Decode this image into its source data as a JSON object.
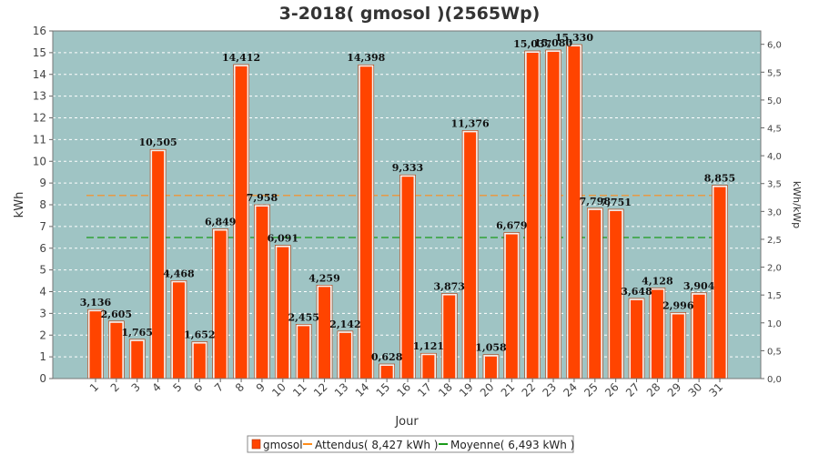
{
  "chart_data": {
    "type": "bar",
    "title": "3-2018( gmosol )(2565Wp)",
    "xlabel": "Jour",
    "ylabel": "kWh",
    "y2label": "kWh/kWp",
    "ylim": [
      0,
      16
    ],
    "y2lim": [
      0,
      6.24
    ],
    "yticks": [
      "0",
      "1",
      "2",
      "3",
      "4",
      "5",
      "6",
      "7",
      "8",
      "9",
      "10",
      "11",
      "12",
      "13",
      "14",
      "15",
      "16"
    ],
    "y2ticks": [
      "0,0",
      "0,5",
      "1,0",
      "1,5",
      "2,0",
      "2,5",
      "3,0",
      "3,5",
      "4,0",
      "4,5",
      "5,0",
      "5,5",
      "6,0"
    ],
    "categories": [
      "1",
      "2",
      "3",
      "4",
      "5",
      "6",
      "7",
      "8",
      "9",
      "10",
      "11",
      "12",
      "13",
      "14",
      "15",
      "16",
      "17",
      "18",
      "19",
      "20",
      "21",
      "22",
      "23",
      "24",
      "25",
      "26",
      "27",
      "28",
      "29",
      "30",
      "31"
    ],
    "series": [
      {
        "name": "gmosol",
        "color": "#ff4400",
        "values": [
          3.136,
          2.605,
          1.765,
          10.505,
          4.468,
          1.652,
          6.849,
          14.412,
          7.958,
          6.091,
          2.455,
          4.259,
          2.142,
          14.398,
          0.628,
          9.333,
          1.121,
          3.873,
          11.376,
          1.058,
          6.679,
          15.037,
          15.08,
          15.33,
          7.798,
          7.751,
          3.648,
          4.128,
          2.996,
          3.904,
          8.855
        ],
        "labels": [
          "3,136",
          "2,605",
          "1,765",
          "10,505",
          "4,468",
          "1,652",
          "6,849",
          "14,412",
          "7,958",
          "6,091",
          "2,455",
          "4,259",
          "2,142",
          "14,398",
          "0,628",
          "9,333",
          "1,121",
          "3,873",
          "11,376",
          "1,058",
          "6,679",
          "15,037",
          "15,080",
          "15,330",
          "7,798",
          "7,751",
          "3,648",
          "4,128",
          "2,996",
          "3,904",
          "8,855"
        ]
      }
    ],
    "reference_lines": [
      {
        "name": "Attendus( 8,427 kWh )",
        "value": 8.427,
        "color": "#ff8c1a"
      },
      {
        "name": "Moyenne( 6,493 kWh )",
        "value": 6.493,
        "color": "#1a9a1a"
      }
    ],
    "plot_background": "#9fc4c4",
    "grid": true,
    "legend_position": "bottom"
  }
}
